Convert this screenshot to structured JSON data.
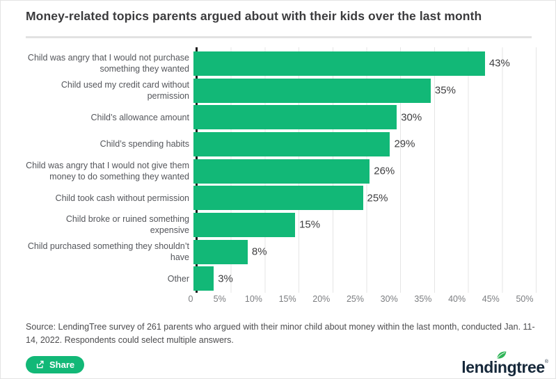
{
  "page": {
    "title": "Money-related topics parents argued about with their kids over the last month"
  },
  "chart_data": {
    "type": "bar",
    "orientation": "horizontal",
    "title": "Money-related topics parents argued about with their kids over the last month",
    "categories": [
      "Child was angry that I would not purchase something they wanted",
      "Child used my credit card without permission",
      "Child’s allowance amount",
      "Child’s spending habits",
      "Child was angry that I would not give them money to do something they wanted",
      "Child took cash without permission",
      "Child broke or ruined something expensive",
      "Child purchased something they shouldn’t have",
      "Other"
    ],
    "values": [
      43,
      35,
      30,
      29,
      26,
      25,
      15,
      8,
      3
    ],
    "value_labels": [
      "43%",
      "35%",
      "30%",
      "29%",
      "26%",
      "25%",
      "15%",
      "8%",
      "3%"
    ],
    "unit": "%",
    "xlim": [
      0,
      50
    ],
    "x_ticks": [
      {
        "value": 0,
        "label": "0"
      },
      {
        "value": 5,
        "label": "5%"
      },
      {
        "value": 10,
        "label": "10%"
      },
      {
        "value": 15,
        "label": "15%"
      },
      {
        "value": 20,
        "label": "20%"
      },
      {
        "value": 25,
        "label": "25%"
      },
      {
        "value": 30,
        "label": "30%"
      },
      {
        "value": 35,
        "label": "35%"
      },
      {
        "value": 40,
        "label": "40%"
      },
      {
        "value": 45,
        "label": "45%"
      },
      {
        "value": 50,
        "label": "50%"
      }
    ],
    "grid": true,
    "legend": false,
    "bar_color": "#12b877"
  },
  "colors": {
    "accent_green": "#12b877",
    "axis": "#1c1c1c",
    "gridline": "#e5e5e5",
    "logo_navy": "#16283a",
    "leaf_green": "#2fb457"
  },
  "footer": {
    "source_text": "Source: LendingTree survey of 261 parents who argued with their minor child about money within the last month, conducted Jan. 11-14, 2022. Respondents could select multiple answers.",
    "share_label": "Share",
    "share_icon": "share-icon",
    "logo_text": "lendingtree",
    "registered": "®",
    "logo_leaf_icon": "leaf-icon"
  }
}
